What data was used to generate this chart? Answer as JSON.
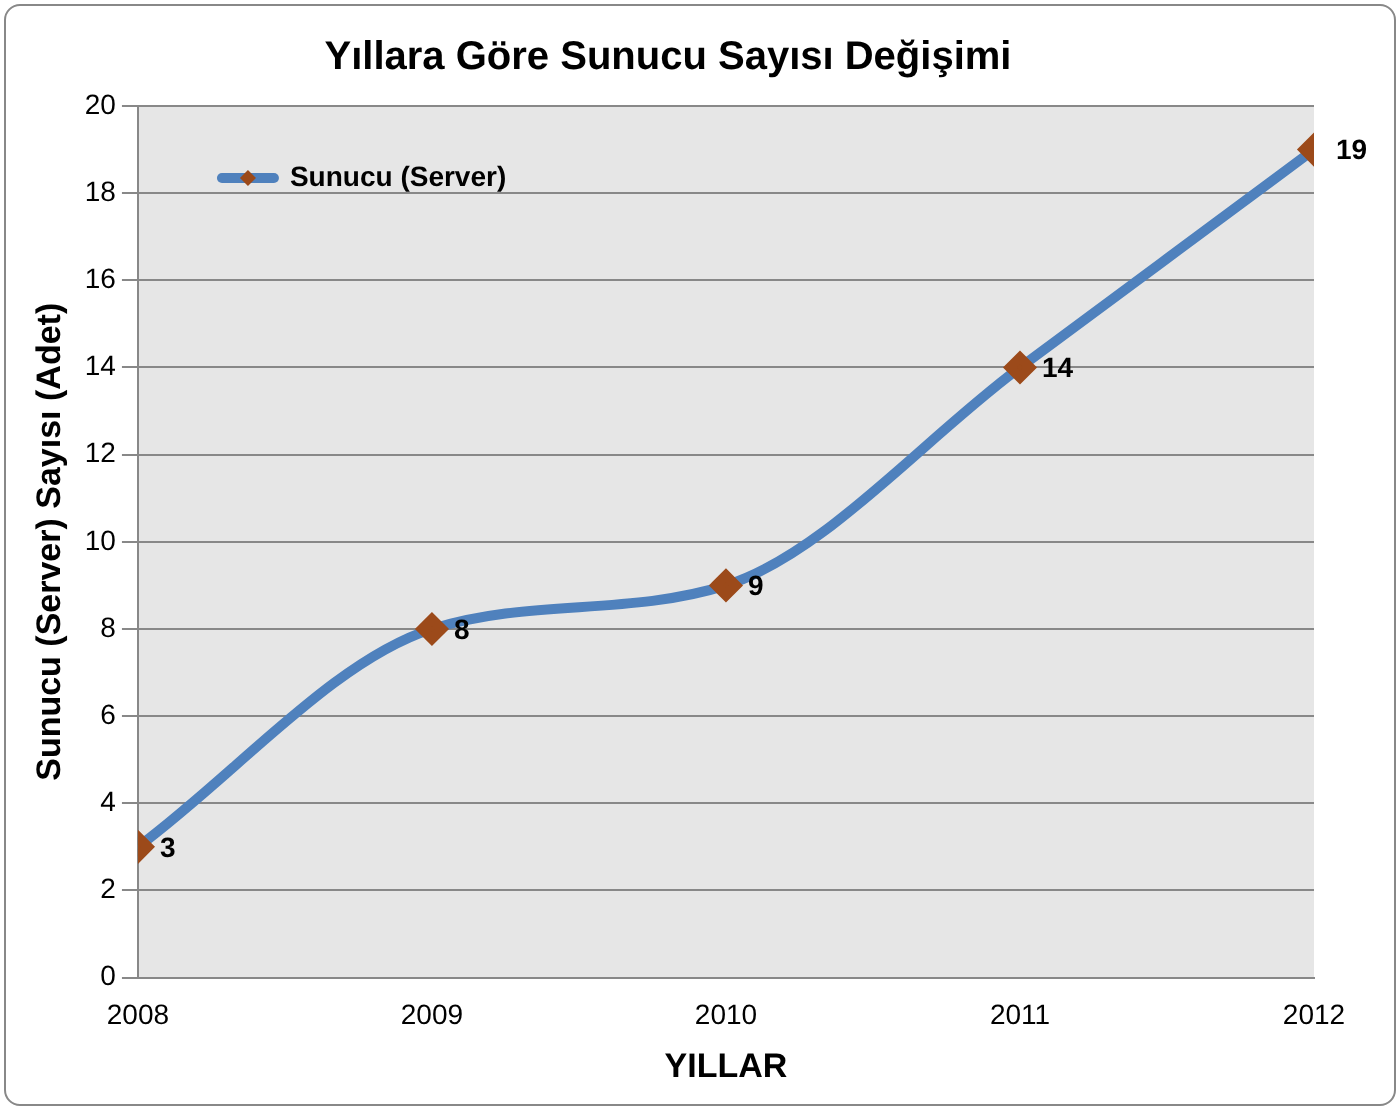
{
  "chart_data": {
    "type": "line",
    "title": "Yıllara Göre Sunucu Sayısı Değişimi",
    "xlabel": "YILLAR",
    "ylabel": "Sunucu (Server) Sayısı (Adet)",
    "x": [
      2008,
      2009,
      2010,
      2011,
      2012
    ],
    "series": [
      {
        "name": "Sunucu (Server)",
        "color": "#4f81bd",
        "colors": [
          "#9c4a1a",
          "#9c4a1a",
          "#9c4a1a",
          "#9c4a1a",
          "#9c4a1a"
        ],
        "values": [
          3,
          8,
          9,
          14,
          19
        ]
      }
    ],
    "xlim": [
      2008,
      2012
    ],
    "xticks": [
      2008,
      2009,
      2010,
      2011,
      2012
    ],
    "ylim": [
      0,
      20
    ],
    "yticks": [
      0,
      2,
      4,
      6,
      8,
      10,
      12,
      14,
      16,
      18,
      20
    ],
    "grid": "y",
    "legend": "top left",
    "marker": "diamond",
    "line_style": "solid",
    "data_labels": true
  }
}
